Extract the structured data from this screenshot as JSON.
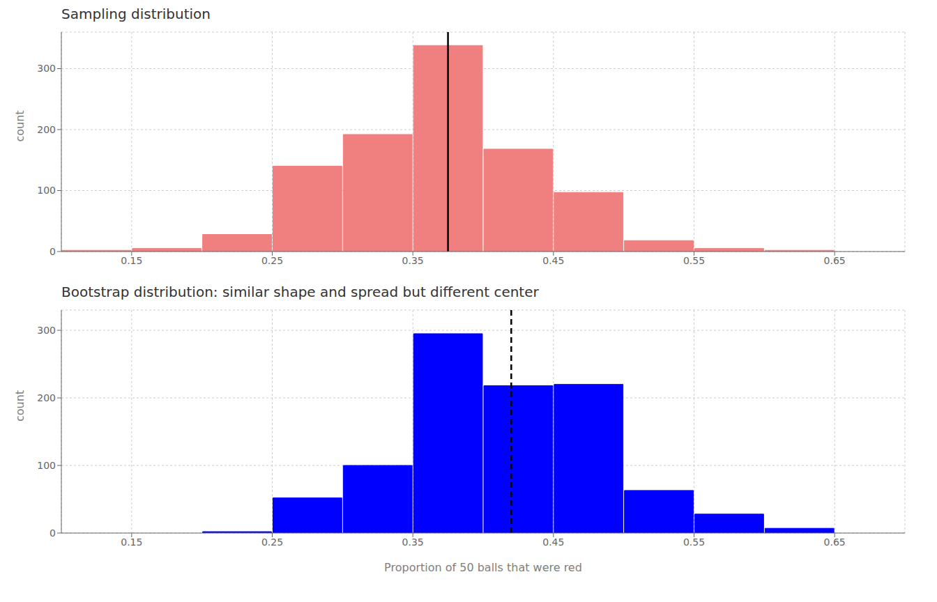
{
  "chart_data": [
    {
      "type": "histogram",
      "title": "Sampling distribution",
      "ylabel": "count",
      "bins": [
        0.1,
        0.15,
        0.2,
        0.25,
        0.3,
        0.35,
        0.4,
        0.45,
        0.5,
        0.55,
        0.6,
        0.65
      ],
      "values": [
        2,
        5,
        28,
        140,
        192,
        338,
        168,
        97,
        18,
        5,
        2
      ],
      "color": "#F08080",
      "xlim": [
        0.1,
        0.7
      ],
      "xticks": [
        0.15,
        0.25,
        0.35,
        0.45,
        0.55,
        0.65
      ],
      "ylim": [
        0,
        360
      ],
      "yticks": [
        0,
        100,
        200,
        300
      ],
      "grid": true,
      "vline": 0.375,
      "line_style": "solid"
    },
    {
      "type": "histogram",
      "title": "Bootstrap distribution: similar shape and spread but different center",
      "xlabel": "Proportion of 50 balls that were red",
      "ylabel": "count",
      "bins": [
        0.1,
        0.15,
        0.2,
        0.25,
        0.3,
        0.35,
        0.4,
        0.45,
        0.5,
        0.55,
        0.6,
        0.65
      ],
      "values": [
        0,
        0,
        2,
        52,
        100,
        295,
        218,
        220,
        63,
        28,
        7
      ],
      "color": "#0000FF",
      "xlim": [
        0.1,
        0.7
      ],
      "xticks": [
        0.15,
        0.25,
        0.35,
        0.45,
        0.55,
        0.65
      ],
      "ylim": [
        0,
        330
      ],
      "yticks": [
        0,
        100,
        200,
        300
      ],
      "grid": true,
      "vline": 0.42,
      "line_style": "dashed"
    }
  ]
}
